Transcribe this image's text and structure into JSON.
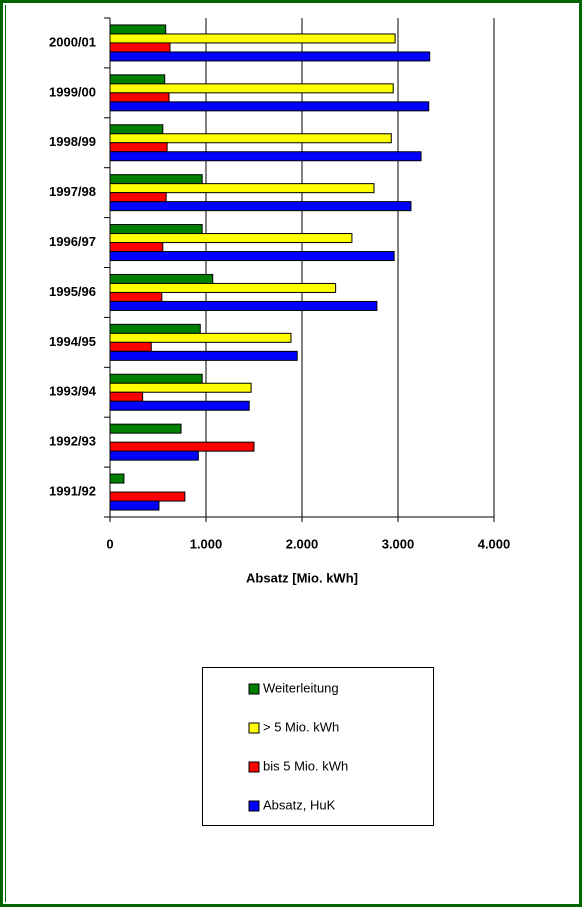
{
  "chart_data": {
    "type": "bar",
    "orientation": "horizontal",
    "x_label": "Absatz [Mio. kWh]",
    "categories": [
      "2000/01",
      "1999/00",
      "1998/99",
      "1997/98",
      "1996/97",
      "1995/96",
      "1994/95",
      "1993/94",
      "1992/93",
      "1991/92"
    ],
    "series": [
      {
        "name": "Weiterleitung",
        "color": "#008000",
        "values": [
          580,
          570,
          550,
          960,
          960,
          1070,
          940,
          960,
          740,
          145
        ]
      },
      {
        "name": "> 5 Mio. kWh",
        "color": "#ffff00",
        "values": [
          2970,
          2950,
          2930,
          2750,
          2520,
          2350,
          1885,
          1470,
          null,
          null
        ]
      },
      {
        "name": "bis 5 Mio. kWh",
        "color": "#ff0000",
        "values": [
          625,
          615,
          595,
          585,
          550,
          540,
          430,
          340,
          1500,
          780
        ]
      },
      {
        "name": "Absatz, HuK",
        "color": "#0000ff",
        "values": [
          3330,
          3320,
          3240,
          3135,
          2960,
          2780,
          1950,
          1450,
          920,
          510
        ]
      }
    ],
    "xlim": [
      0,
      4000
    ],
    "xticks": [
      0,
      {
        "value": 1000,
        "label": "1.000"
      },
      {
        "value": 2000,
        "label": "2.000"
      },
      {
        "value": 3000,
        "label": "3.000"
      },
      {
        "value": 4000,
        "label": "4.000"
      }
    ],
    "grid": true
  }
}
